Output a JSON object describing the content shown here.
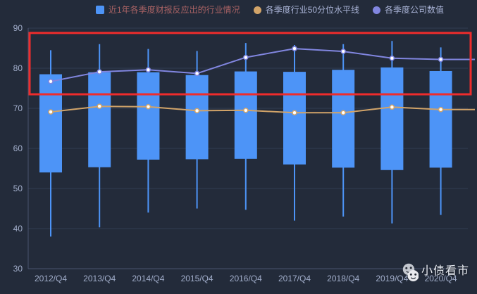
{
  "colors": {
    "background": "#232b3a",
    "grid_line": "#323c52",
    "axis_line": "#49536e",
    "axis_text": "#a2aecb",
    "candle_blue": "#4d94f7",
    "median_orange": "#d2a469",
    "company_purple": "#8186e0",
    "annotation_red": "#ee2c2c",
    "dot_fill": "#ffffff",
    "watermark_text_color": "#e9edf4"
  },
  "legend": {
    "items": [
      {
        "label": "近1年各季度财报反应出的行业情况",
        "marker": "square",
        "marker_color": "#4d94f7",
        "text_color": "#a86264"
      },
      {
        "label": "各季度行业50分位水平线",
        "marker": "circle",
        "marker_color": "#d2a469",
        "text_color": "#a9b3d6"
      },
      {
        "label": "各季度公司数值",
        "marker": "circle",
        "marker_color": "#8186e0",
        "text_color": "#a9b3d6"
      }
    ]
  },
  "watermark": {
    "text": "小债看市",
    "icon": "wechat-chat-faces"
  },
  "chart_data": {
    "type": "candlestick",
    "title": "",
    "xlabel": "",
    "ylabel": "",
    "grid": true,
    "legend_position": "top",
    "ylim": [
      30,
      90
    ],
    "y_ticks": [
      30,
      40,
      50,
      60,
      70,
      80,
      90
    ],
    "categories": [
      "2012/Q4",
      "2013/Q4",
      "2014/Q4",
      "2015/Q4",
      "2016/Q4",
      "2017/Q4",
      "2018/Q4",
      "2019/Q4",
      "2020/Q4"
    ],
    "series": [
      {
        "name": "近1年各季度财报反应出的行业情况",
        "type": "candlestick",
        "color": "#4d94f7",
        "box_keys": [
          "low",
          "box_bottom",
          "box_top",
          "high"
        ],
        "boxes": [
          [
            38.0,
            54.0,
            78.5,
            84.5
          ],
          [
            40.3,
            55.3,
            79.0,
            86.0
          ],
          [
            44.0,
            57.2,
            79.0,
            84.8
          ],
          [
            45.0,
            57.3,
            78.3,
            84.3
          ],
          [
            44.7,
            57.4,
            79.2,
            86.3
          ],
          [
            42.0,
            56.0,
            79.1,
            85.8
          ],
          [
            43.0,
            55.2,
            79.6,
            86.0
          ],
          [
            41.3,
            54.6,
            80.2,
            86.8
          ],
          [
            43.4,
            55.2,
            79.3,
            85.2
          ]
        ]
      },
      {
        "name": "各季度行业50分位水平线",
        "type": "line",
        "color": "#d2a469",
        "values": [
          69.1,
          70.5,
          70.4,
          69.4,
          69.5,
          68.9,
          68.9,
          70.3,
          69.7
        ]
      },
      {
        "name": "各季度公司数值",
        "type": "line",
        "color": "#8186e0",
        "values": [
          76.7,
          79.1,
          79.6,
          78.7,
          82.7,
          84.9,
          84.2,
          82.5,
          82.2
        ]
      }
    ],
    "annotation": {
      "type": "rect",
      "color": "#ee2c2c",
      "y_from": 73.5,
      "y_to": 88.8,
      "note": "red highlight rectangle spanning full plot width over upper value band"
    }
  }
}
